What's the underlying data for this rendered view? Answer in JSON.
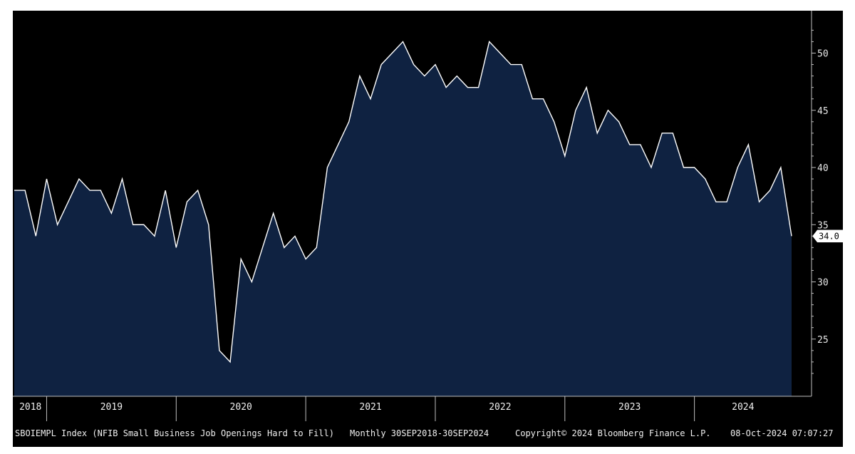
{
  "chart_data": {
    "type": "area",
    "x_range": [
      "2018-09",
      "2024-09"
    ],
    "ylim": [
      20,
      53
    ],
    "yticks": [
      25,
      30,
      35,
      40,
      45,
      50
    ],
    "year_labels": [
      "2018",
      "2019",
      "2020",
      "2021",
      "2022",
      "2023",
      "2024"
    ],
    "series": [
      {
        "values": [
          38,
          38,
          34,
          39,
          35,
          37,
          39,
          38,
          38,
          36,
          39,
          35,
          35,
          34,
          38,
          33,
          37,
          38,
          35,
          24,
          23,
          32,
          30,
          33,
          36,
          33,
          34,
          32,
          33,
          40,
          42,
          44,
          48,
          46,
          49,
          50,
          51,
          49,
          48,
          49,
          47,
          48,
          47,
          47,
          51,
          50,
          49,
          49,
          46,
          46,
          44,
          41,
          45,
          47,
          43,
          45,
          44,
          42,
          42,
          40,
          43,
          43,
          40,
          40,
          39,
          37,
          37,
          40,
          42,
          37,
          38,
          40,
          34
        ]
      }
    ],
    "last_value_label": "34.0",
    "colors": {
      "background": "#000000",
      "fill": "#0f2241",
      "line": "#ffffff",
      "label_bg": "#ffffff"
    },
    "footer": {
      "ticker": "SBOIEMPL Index (NFIB Small Business Job Openings Hard to Fill)",
      "range": "Monthly 30SEP2018-30SEP2024",
      "copyright": "Copyright© 2024 Bloomberg Finance L.P.",
      "timestamp": "08-Oct-2024 07:07:27"
    }
  }
}
